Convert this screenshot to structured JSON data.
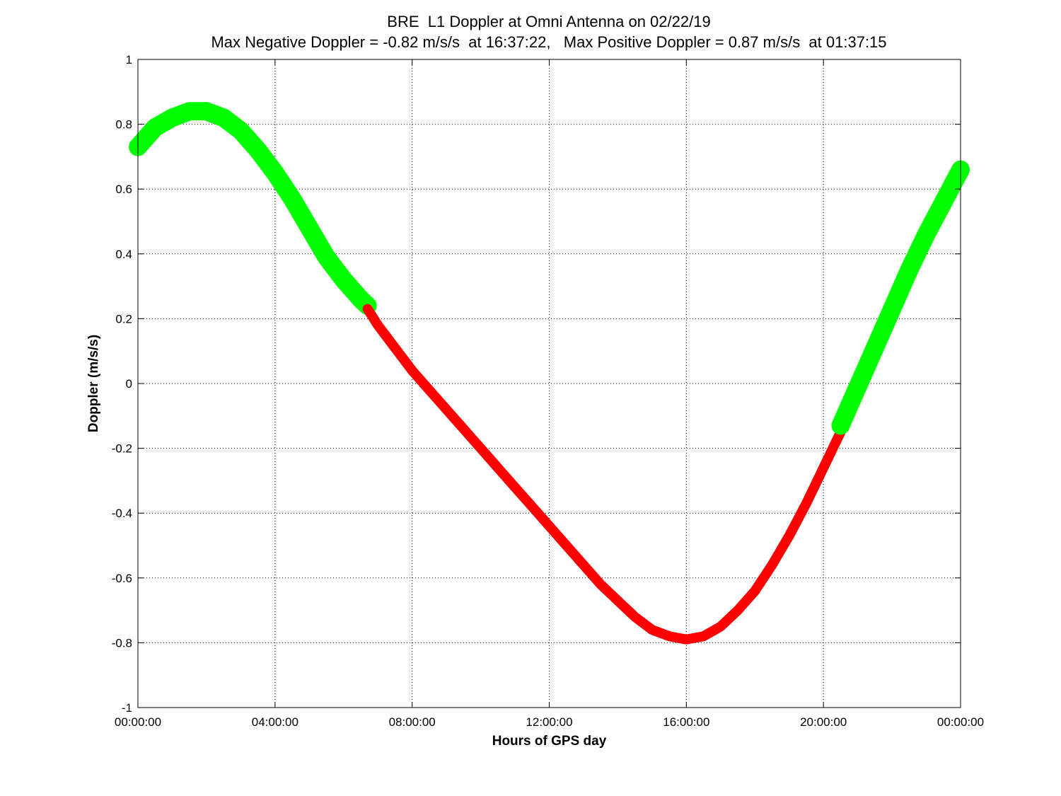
{
  "chart_data": {
    "type": "scatter",
    "title": "BRE  L1 Doppler at Omni Antenna on 02/22/19",
    "subtitle": "Max Negative Doppler = -0.82 m/s/s  at 16:37:22,   Max Positive Doppler = 0.87 m/s/s  at 01:37:15",
    "xlabel": "Hours of GPS day",
    "ylabel": "Doppler (m/s/s)",
    "xlim": [
      0,
      24
    ],
    "ylim": [
      -1,
      1
    ],
    "grid": true,
    "x_ticks": [
      0,
      4,
      8,
      12,
      16,
      20,
      24
    ],
    "x_tick_labels": [
      "00:00:00",
      "04:00:00",
      "08:00:00",
      "12:00:00",
      "16:00:00",
      "20:00:00",
      "00:00:00"
    ],
    "y_ticks": [
      1,
      0.8,
      0.6,
      0.4,
      0.2,
      0,
      -0.2,
      -0.4,
      -0.6,
      -0.8,
      -1
    ],
    "y_tick_labels": [
      "1",
      "0.8",
      "0.6",
      "0.4",
      "0.2",
      "0",
      "-0.2",
      "-0.4",
      "-0.6",
      "-0.8",
      "-1"
    ],
    "series": [
      {
        "color": "#00ff00",
        "marker": "asterisk",
        "x": [
          0,
          0.5,
          1.0,
          1.5,
          2.0,
          2.5,
          3.0,
          3.5,
          4.0,
          4.5,
          5.0,
          5.5,
          6.0,
          6.5,
          6.7
        ],
        "y": [
          0.73,
          0.79,
          0.82,
          0.84,
          0.84,
          0.82,
          0.78,
          0.72,
          0.65,
          0.57,
          0.48,
          0.39,
          0.32,
          0.26,
          0.24
        ]
      },
      {
        "color": "#ff0000",
        "marker": "line",
        "x": [
          6.7,
          7.0,
          7.5,
          8.0,
          8.5,
          9.0,
          9.5,
          10.0,
          10.5,
          11.0,
          11.5,
          12.0,
          12.5,
          13.0,
          13.5,
          14.0,
          14.5,
          15.0,
          15.5,
          16.0,
          16.5,
          17.0,
          17.5,
          18.0,
          18.5,
          19.0,
          19.5,
          20.0,
          20.5
        ],
        "y": [
          0.23,
          0.18,
          0.11,
          0.04,
          -0.02,
          -0.08,
          -0.14,
          -0.2,
          -0.26,
          -0.32,
          -0.38,
          -0.44,
          -0.5,
          -0.56,
          -0.62,
          -0.67,
          -0.72,
          -0.76,
          -0.78,
          -0.79,
          -0.78,
          -0.75,
          -0.7,
          -0.64,
          -0.56,
          -0.47,
          -0.37,
          -0.26,
          -0.15
        ]
      },
      {
        "color": "#00ff00",
        "marker": "asterisk",
        "x": [
          20.5,
          21.0,
          21.5,
          22.0,
          22.5,
          23.0,
          23.5,
          24.0
        ],
        "y": [
          -0.13,
          -0.01,
          0.11,
          0.23,
          0.35,
          0.46,
          0.56,
          0.66
        ]
      }
    ]
  }
}
